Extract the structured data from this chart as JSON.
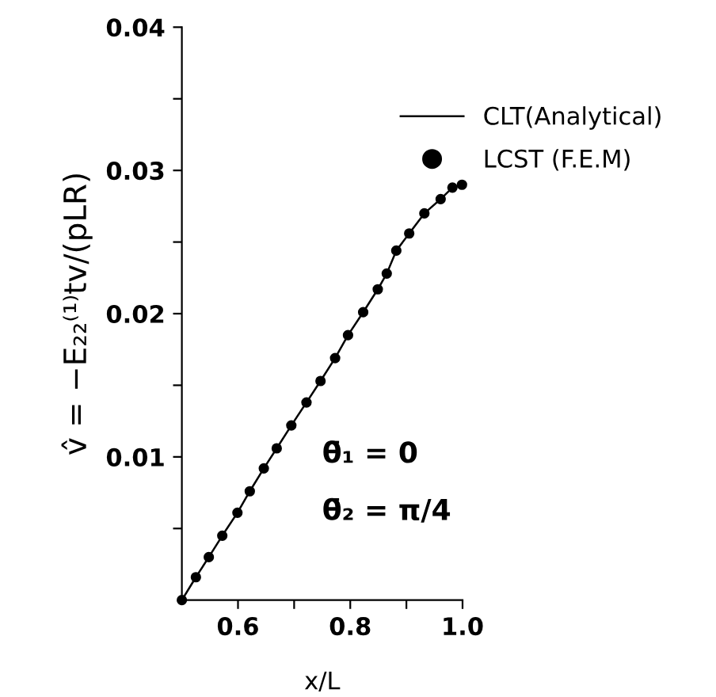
{
  "chart_data": {
    "type": "line",
    "xlabel": "x/L",
    "ylabel": "v̂ = −E₂₂⁽¹⁾tv/(pLR)",
    "x": [
      0.5,
      0.525,
      0.548,
      0.572,
      0.599,
      0.621,
      0.646,
      0.669,
      0.695,
      0.722,
      0.747,
      0.773,
      0.796,
      0.823,
      0.849,
      0.865,
      0.882,
      0.905,
      0.932,
      0.961,
      0.982,
      0.999
    ],
    "series": [
      {
        "name": "CLT(Analytical)",
        "color": "#000000",
        "marker": "none",
        "values": [
          0,
          0.0016,
          0.003,
          0.0045,
          0.0061,
          0.0076,
          0.0092,
          0.0106,
          0.0122,
          0.0138,
          0.0153,
          0.0169,
          0.0185,
          0.0201,
          0.0217,
          0.0228,
          0.0244,
          0.0256,
          0.027,
          0.028,
          0.0288,
          0.029
        ]
      },
      {
        "name": "LCST (F.E.M)",
        "type": "scatter",
        "color": "#000000",
        "marker": "circle",
        "values": [
          0,
          0.0016,
          0.003,
          0.0045,
          0.0061,
          0.0076,
          0.0092,
          0.0106,
          0.0122,
          0.0138,
          0.0153,
          0.0169,
          0.0185,
          0.0201,
          0.0217,
          0.0228,
          0.0244,
          0.0256,
          0.027,
          0.028,
          0.0288,
          0.029
        ]
      }
    ],
    "annotations": [
      "θ̄₁ = 0",
      "θ̄₂ = π/4"
    ],
    "xlim": [
      0.5,
      1.0
    ],
    "xticks": [
      {
        "value": 0.6,
        "label": "0.6"
      },
      {
        "value": 0.7,
        "label": null
      },
      {
        "value": 0.8,
        "label": "0.8"
      },
      {
        "value": 0.9,
        "label": null
      },
      {
        "value": 1.0,
        "label": "1.0"
      }
    ],
    "ylim": [
      0,
      0.04
    ],
    "yticks": [
      {
        "value": 0.005,
        "label": null
      },
      {
        "value": 0.01,
        "label": "0.01"
      },
      {
        "value": 0.015,
        "label": null
      },
      {
        "value": 0.02,
        "label": "0.02"
      },
      {
        "value": 0.025,
        "label": null
      },
      {
        "value": 0.03,
        "label": "0.03"
      },
      {
        "value": 0.035,
        "label": null
      },
      {
        "value": 0.04,
        "label": "0.04"
      }
    ],
    "grid": false,
    "legend": "top right"
  }
}
